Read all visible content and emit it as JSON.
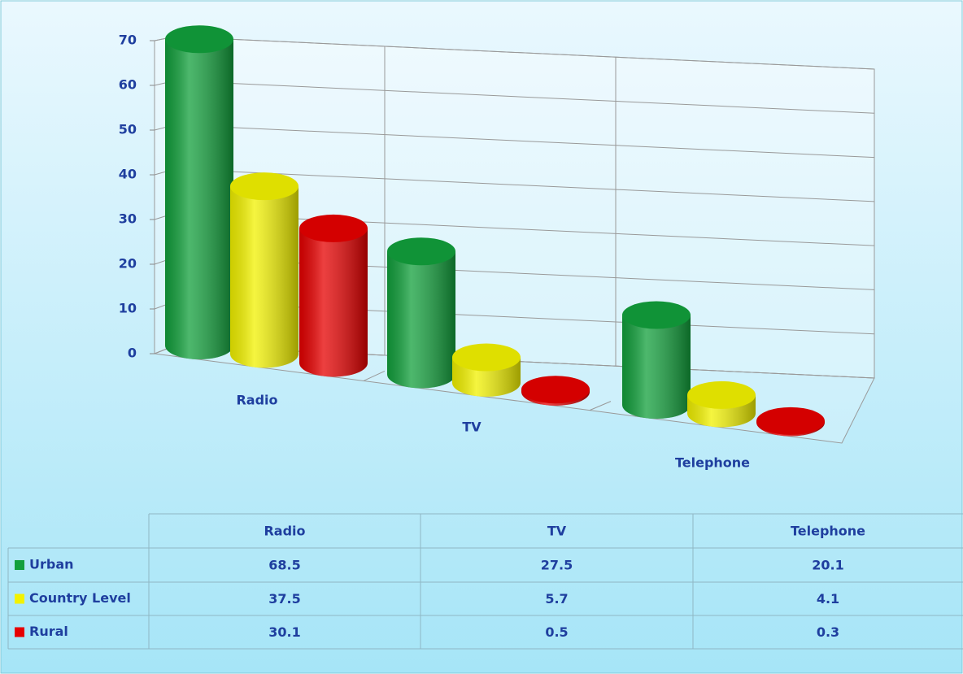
{
  "chart_data": {
    "type": "bar3d",
    "categories": [
      "Radio",
      "TV",
      "Telephone"
    ],
    "series": [
      {
        "name": "Urban",
        "color": "#12a03c",
        "values": [
          68.5,
          27.5,
          20.1
        ]
      },
      {
        "name": "Country Level",
        "color": "#f2f200",
        "values": [
          37.5,
          5.7,
          4.1
        ]
      },
      {
        "name": "Rural",
        "color": "#e60000",
        "values": [
          30.1,
          0.5,
          0.3
        ]
      }
    ],
    "ylim": [
      0,
      70
    ],
    "yticks": [
      0,
      10,
      20,
      30,
      40,
      50,
      60,
      70
    ],
    "grid": true
  }
}
